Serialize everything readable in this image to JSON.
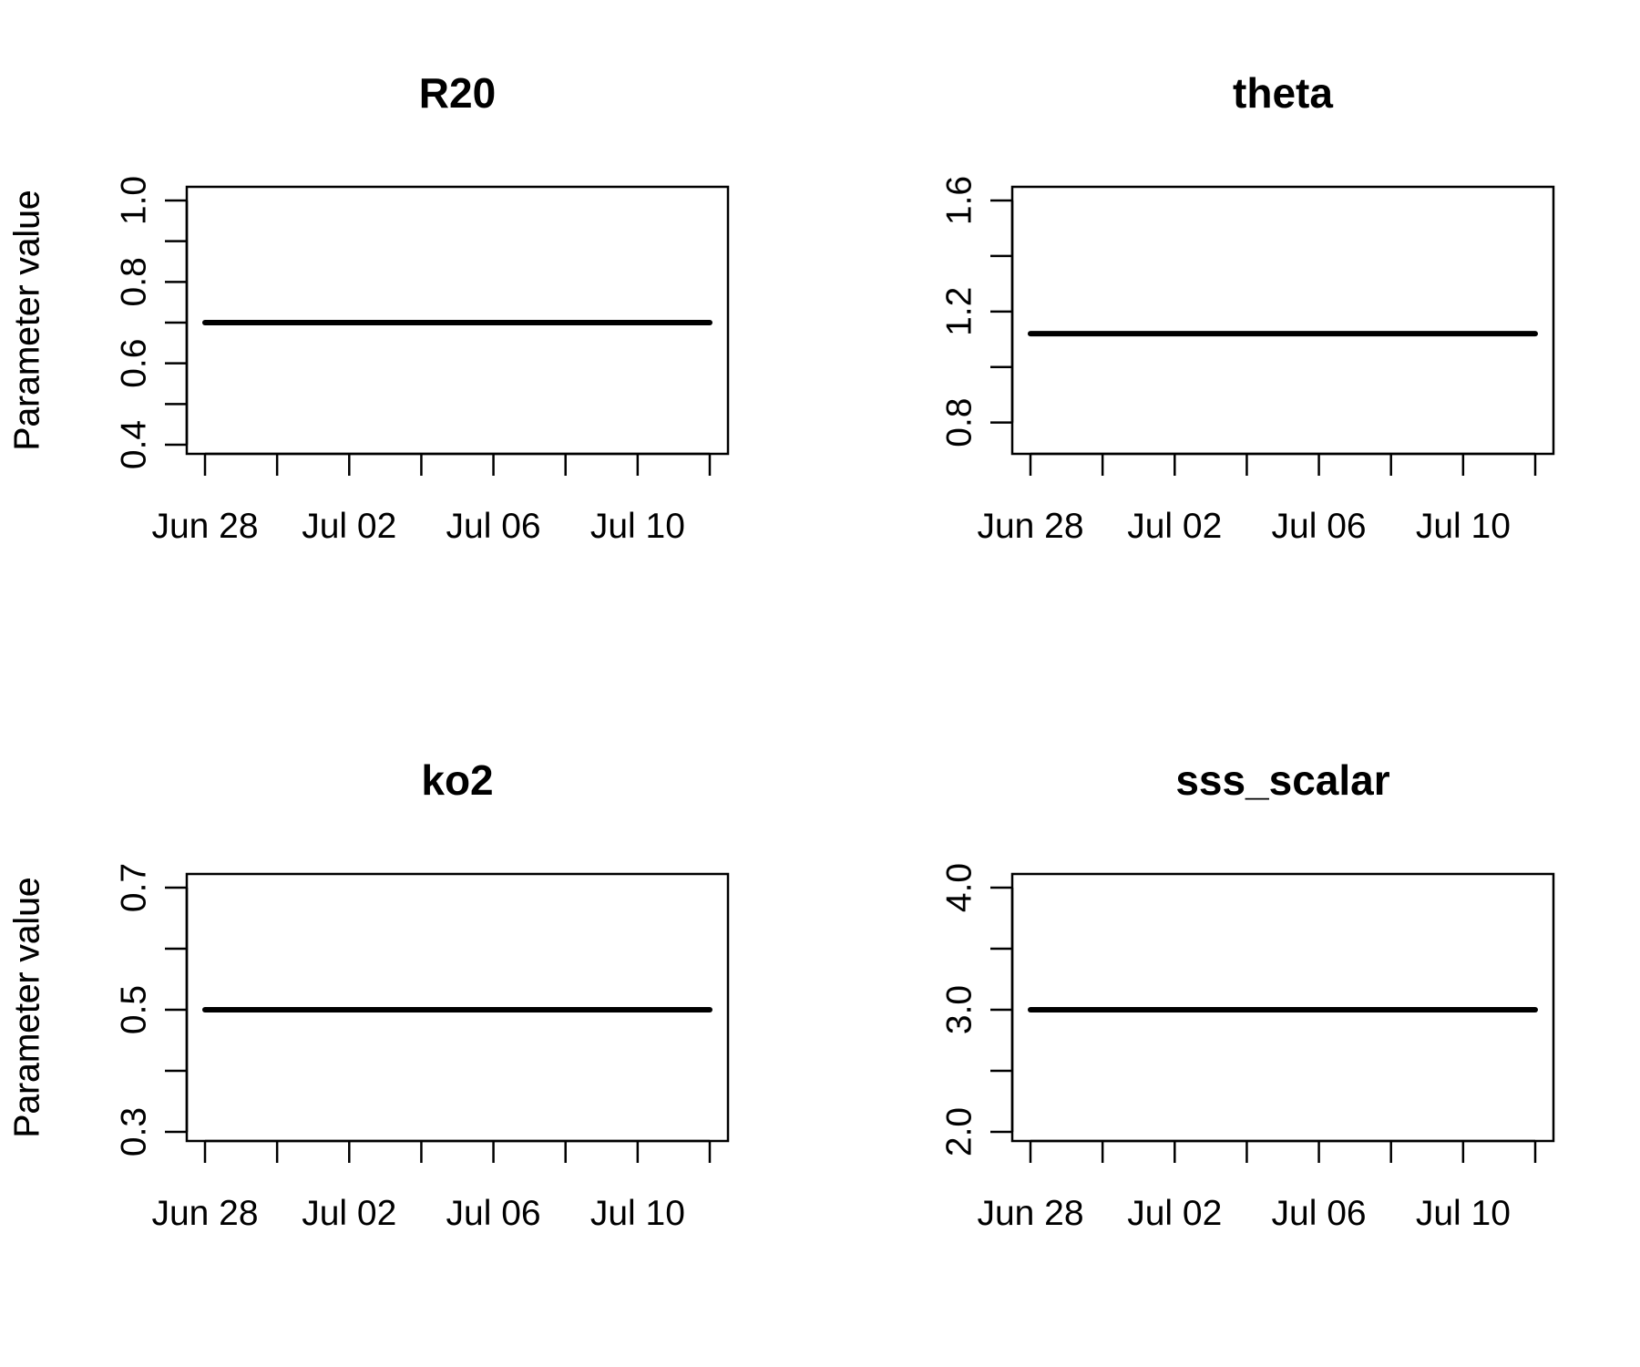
{
  "chart_data": [
    {
      "type": "line",
      "title": "R20",
      "xlabel": "",
      "ylabel": "Parameter value",
      "x_ticks": [
        "Jun 28",
        "Jul 02",
        "Jul 06",
        "Jul 10"
      ],
      "y_ticks": [
        "0.4",
        "0.6",
        "0.8",
        "1.0"
      ],
      "ylim": [
        0.4,
        1.0
      ],
      "xlim": [
        "2021-06-28",
        "2021-07-12"
      ],
      "x": [
        "2021-06-28",
        "2021-07-12"
      ],
      "series": [
        {
          "values": [
            0.7,
            0.7
          ],
          "color": "#000000"
        }
      ],
      "grid": false
    },
    {
      "type": "line",
      "title": "theta",
      "xlabel": "",
      "ylabel": "Parameter value",
      "x_ticks": [
        "Jun 28",
        "Jul 02",
        "Jul 06",
        "Jul 10"
      ],
      "y_ticks": [
        "0.8",
        "1.2",
        "1.6"
      ],
      "ylim": [
        0.72,
        1.6
      ],
      "xlim": [
        "2021-06-28",
        "2021-07-12"
      ],
      "x": [
        "2021-06-28",
        "2021-07-12"
      ],
      "series": [
        {
          "values": [
            1.12,
            1.12
          ],
          "color": "#000000"
        }
      ],
      "grid": false
    },
    {
      "type": "line",
      "title": "ko2",
      "xlabel": "",
      "ylabel": "Parameter value",
      "x_ticks": [
        "Jun 28",
        "Jul 02",
        "Jul 06",
        "Jul 10"
      ],
      "y_ticks": [
        "0.3",
        "0.5",
        "0.7"
      ],
      "ylim": [
        0.3,
        0.7
      ],
      "xlim": [
        "2021-06-28",
        "2021-07-12"
      ],
      "x": [
        "2021-06-28",
        "2021-07-12"
      ],
      "series": [
        {
          "values": [
            0.5,
            0.5
          ],
          "color": "#000000"
        }
      ],
      "grid": false
    },
    {
      "type": "line",
      "title": "sss_scalar",
      "xlabel": "",
      "ylabel": "Parameter value",
      "x_ticks": [
        "Jun 28",
        "Jul 02",
        "Jul 06",
        "Jul 10"
      ],
      "y_ticks": [
        "2.0",
        "3.0",
        "4.0"
      ],
      "ylim": [
        2.0,
        4.0
      ],
      "xlim": [
        "2021-06-28",
        "2021-07-12"
      ],
      "x": [
        "2021-06-28",
        "2021-07-12"
      ],
      "series": [
        {
          "values": [
            3.0,
            3.0
          ],
          "color": "#000000"
        }
      ],
      "grid": false
    }
  ]
}
